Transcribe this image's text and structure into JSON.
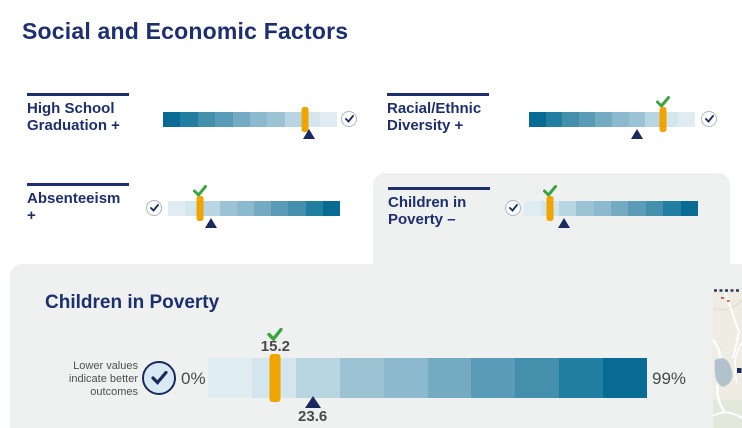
{
  "page_title": "Social and Economic Factors",
  "colors": {
    "navy": "#1e2f6e",
    "marker_orange": "#f0a400",
    "check_green": "#3ba43f",
    "benchmark_navy": "#1b2a5e",
    "panel_gray": "#eff1f1",
    "text_gray": "#4a4a4a",
    "scale": [
      "#dfecf2",
      "#d3e5ed",
      "#b8d5e2",
      "#9cc3d3",
      "#8cb9cd",
      "#74abc3",
      "#5a9cb8",
      "#4490ac",
      "#217ea0",
      "#076b93"
    ]
  },
  "metrics": [
    {
      "id": "high-school-graduation",
      "label": "High School Graduation +",
      "scale_direction": "dark_to_light",
      "flag_side": "right",
      "value_pct": 81.5,
      "benchmark_pct": 84,
      "has_value_check": false
    },
    {
      "id": "racial-ethnic-diversity",
      "label": "Racial/Ethnic Diversity +",
      "scale_direction": "dark_to_light",
      "flag_side": "right",
      "value_pct": 80.7,
      "benchmark_pct": 65,
      "has_value_check": true
    },
    {
      "id": "absenteeism",
      "label": "Absenteeism +",
      "scale_direction": "light_to_dark",
      "flag_side": "left",
      "value_pct": 18.6,
      "benchmark_pct": 25,
      "has_value_check": true
    },
    {
      "id": "children-in-poverty",
      "label": "Children in Poverty –",
      "scale_direction": "light_to_dark",
      "flag_side": "left",
      "value_pct": 15,
      "benchmark_pct": 23,
      "has_value_check": true,
      "selected": true
    }
  ],
  "detail": {
    "title": "Children in Poverty",
    "note": "Lower values indicate better outcomes",
    "min_label": "0%",
    "max_label": "99%",
    "value_label": "15.2",
    "benchmark_label": "23.6",
    "scale_direction": "light_to_dark",
    "value_pct": 15.35,
    "benchmark_pct": 23.84,
    "has_value_check": true
  },
  "chart_data": [
    {
      "type": "heatmap",
      "title": "High School Graduation +",
      "gradient": "dark worse end at left, light better end at right",
      "value_marker_pct_of_scale": 81.5,
      "comparison_marker_pct_of_scale": 84,
      "numeric_labels_shown": false,
      "value_flagged_good": false
    },
    {
      "type": "heatmap",
      "title": "Racial/Ethnic Diversity +",
      "gradient": "dark left to light right",
      "value_marker_pct_of_scale": 80.7,
      "comparison_marker_pct_of_scale": 65,
      "numeric_labels_shown": false,
      "value_flagged_good": true
    },
    {
      "type": "heatmap",
      "title": "Absenteeism +",
      "gradient": "light left to dark right",
      "value_marker_pct_of_scale": 18.6,
      "comparison_marker_pct_of_scale": 25,
      "numeric_labels_shown": false,
      "value_flagged_good": true
    },
    {
      "type": "heatmap",
      "title": "Children in Poverty –",
      "gradient": "light left to dark right",
      "value_marker_pct_of_scale": 15,
      "comparison_marker_pct_of_scale": 23,
      "numeric_labels_shown": false,
      "value_flagged_good": true,
      "selected": true
    },
    {
      "type": "heatmap",
      "title": "Children in Poverty",
      "axis_min": "0%",
      "axis_max": "99%",
      "value": 15.2,
      "comparison_value": 23.6,
      "note": "Lower values indicate better outcomes",
      "gradient": "light left to dark right",
      "value_flagged_good": true
    }
  ]
}
